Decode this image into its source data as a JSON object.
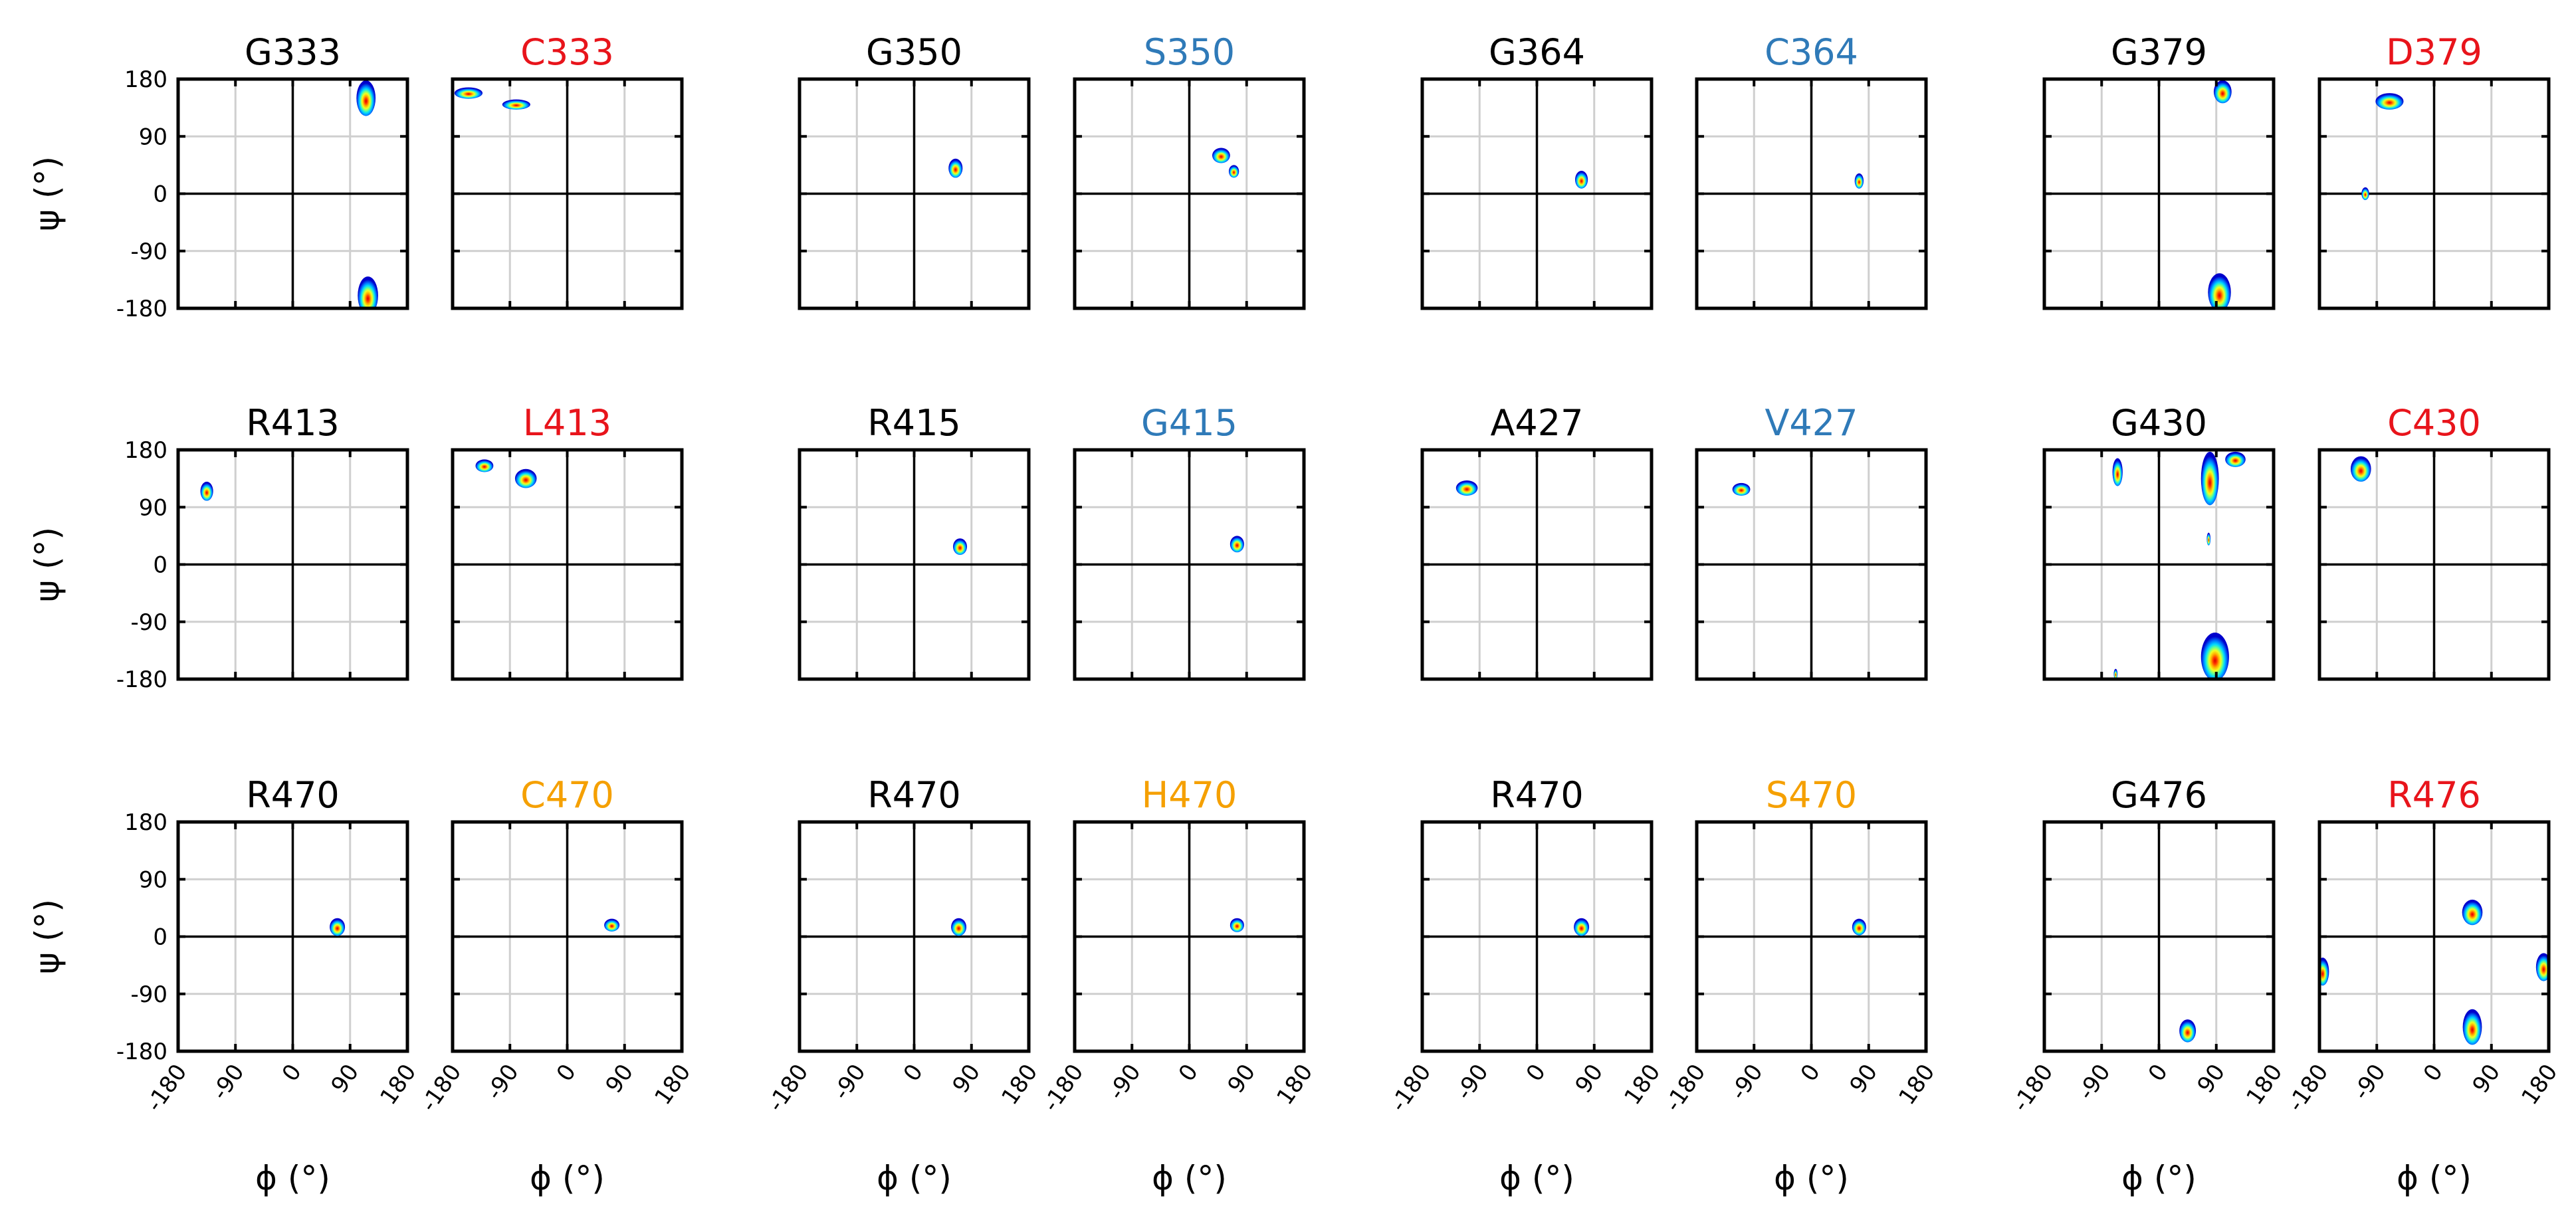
{
  "chart_data": {
    "type": "heatmap",
    "description_type": "ramachandran-density-grid",
    "xlabel": "ϕ (°)",
    "ylabel": "ψ (°)",
    "xlim": [
      -180,
      180
    ],
    "ylim": [
      -180,
      180
    ],
    "x_ticks": [
      "-180",
      "-90",
      "0",
      "90",
      "180"
    ],
    "y_ticks": [
      "180",
      "90",
      "0",
      "-90",
      "-180"
    ],
    "grid": true,
    "colormap": "jet",
    "title_colors": {
      "wildtype": "#000000",
      "red": "#e8141b",
      "blue": "#2f7ab8",
      "orange": "#f5a000"
    },
    "panels": [
      {
        "title": "G333",
        "title_color": "#000000",
        "blobs": [
          {
            "phi": 115,
            "psi": 150,
            "sx": 15,
            "sy": 28
          },
          {
            "phi": 118,
            "psi": -160,
            "sx": 16,
            "sy": 30
          }
        ]
      },
      {
        "title": "C333",
        "title_color": "#e8141b",
        "blobs": [
          {
            "phi": -155,
            "psi": 158,
            "sx": 22,
            "sy": 9
          },
          {
            "phi": -80,
            "psi": 140,
            "sx": 22,
            "sy": 8
          }
        ]
      },
      {
        "title": "G350",
        "title_color": "#000000",
        "blobs": [
          {
            "phi": 65,
            "psi": 40,
            "sx": 11,
            "sy": 15
          }
        ]
      },
      {
        "title": "S350",
        "title_color": "#2f7ab8",
        "blobs": [
          {
            "phi": 50,
            "psi": 60,
            "sx": 14,
            "sy": 12
          },
          {
            "phi": 70,
            "psi": 35,
            "sx": 8,
            "sy": 10
          }
        ]
      },
      {
        "title": "G364",
        "title_color": "#000000",
        "blobs": [
          {
            "phi": 70,
            "psi": 22,
            "sx": 10,
            "sy": 14
          }
        ]
      },
      {
        "title": "C364",
        "title_color": "#2f7ab8",
        "blobs": [
          {
            "phi": 75,
            "psi": 20,
            "sx": 7,
            "sy": 12
          }
        ]
      },
      {
        "title": "G379",
        "title_color": "#000000",
        "blobs": [
          {
            "phi": 100,
            "psi": 160,
            "sx": 14,
            "sy": 18
          },
          {
            "phi": 95,
            "psi": -155,
            "sx": 18,
            "sy": 30
          }
        ]
      },
      {
        "title": "D379",
        "title_color": "#e8141b",
        "blobs": [
          {
            "phi": -70,
            "psi": 145,
            "sx": 22,
            "sy": 13
          },
          {
            "phi": -108,
            "psi": 0,
            "sx": 6,
            "sy": 10
          }
        ]
      },
      {
        "title": "R413",
        "title_color": "#000000",
        "blobs": [
          {
            "phi": -135,
            "psi": 115,
            "sx": 10,
            "sy": 15
          }
        ]
      },
      {
        "title": "L413",
        "title_color": "#e8141b",
        "blobs": [
          {
            "phi": -130,
            "psi": 155,
            "sx": 14,
            "sy": 10
          },
          {
            "phi": -65,
            "psi": 135,
            "sx": 17,
            "sy": 15
          }
        ]
      },
      {
        "title": "R415",
        "title_color": "#000000",
        "blobs": [
          {
            "phi": 72,
            "psi": 28,
            "sx": 11,
            "sy": 13
          }
        ]
      },
      {
        "title": "G415",
        "title_color": "#2f7ab8",
        "blobs": [
          {
            "phi": 75,
            "psi": 32,
            "sx": 11,
            "sy": 13
          }
        ]
      },
      {
        "title": "A427",
        "title_color": "#000000",
        "blobs": [
          {
            "phi": -110,
            "psi": 120,
            "sx": 17,
            "sy": 12
          }
        ]
      },
      {
        "title": "V427",
        "title_color": "#2f7ab8",
        "blobs": [
          {
            "phi": -110,
            "psi": 118,
            "sx": 14,
            "sy": 10
          }
        ]
      },
      {
        "title": "G430",
        "title_color": "#000000",
        "blobs": [
          {
            "phi": -65,
            "psi": 145,
            "sx": 8,
            "sy": 22
          },
          {
            "phi": 80,
            "psi": 135,
            "sx": 14,
            "sy": 42
          },
          {
            "phi": 120,
            "psi": 165,
            "sx": 16,
            "sy": 12
          },
          {
            "phi": 88,
            "psi": -145,
            "sx": 22,
            "sy": 38
          },
          {
            "phi": -68,
            "psi": -172,
            "sx": 3,
            "sy": 8
          },
          {
            "phi": 78,
            "psi": 40,
            "sx": 3,
            "sy": 10
          }
        ]
      },
      {
        "title": "C430",
        "title_color": "#e8141b",
        "blobs": [
          {
            "phi": -115,
            "psi": 150,
            "sx": 16,
            "sy": 20
          }
        ]
      },
      {
        "title": "R470",
        "title_color": "#000000",
        "blobs": [
          {
            "phi": 70,
            "psi": 15,
            "sx": 12,
            "sy": 14
          }
        ]
      },
      {
        "title": "C470",
        "title_color": "#f5a000",
        "blobs": [
          {
            "phi": 70,
            "psi": 18,
            "sx": 12,
            "sy": 10
          }
        ]
      },
      {
        "title": "R470",
        "title_color": "#000000",
        "blobs": [
          {
            "phi": 70,
            "psi": 15,
            "sx": 12,
            "sy": 14
          }
        ]
      },
      {
        "title": "H470",
        "title_color": "#f5a000",
        "blobs": [
          {
            "phi": 75,
            "psi": 18,
            "sx": 11,
            "sy": 11
          }
        ]
      },
      {
        "title": "R470",
        "title_color": "#000000",
        "blobs": [
          {
            "phi": 70,
            "psi": 15,
            "sx": 12,
            "sy": 14
          }
        ]
      },
      {
        "title": "S470",
        "title_color": "#f5a000",
        "blobs": [
          {
            "phi": 75,
            "psi": 15,
            "sx": 11,
            "sy": 13
          }
        ]
      },
      {
        "title": "G476",
        "title_color": "#000000",
        "blobs": [
          {
            "phi": 45,
            "psi": -148,
            "sx": 13,
            "sy": 18
          }
        ]
      },
      {
        "title": "R476",
        "title_color": "#e8141b",
        "blobs": [
          {
            "phi": 60,
            "psi": 38,
            "sx": 16,
            "sy": 20
          },
          {
            "phi": 60,
            "psi": -142,
            "sx": 15,
            "sy": 28
          },
          {
            "phi": -175,
            "psi": -55,
            "sx": 10,
            "sy": 22
          },
          {
            "phi": 172,
            "psi": -48,
            "sx": 12,
            "sy": 22
          }
        ]
      }
    ]
  }
}
